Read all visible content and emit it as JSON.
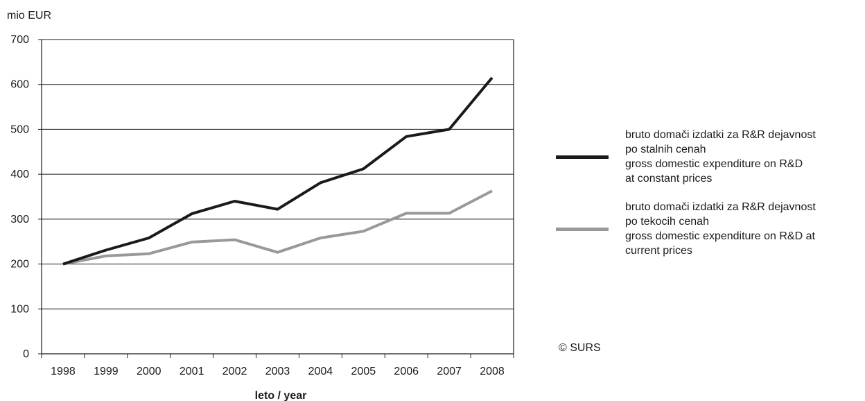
{
  "chart_data": {
    "type": "line",
    "ylabel": "mio EUR",
    "xlabel": "leto / year",
    "ylim": [
      0,
      700
    ],
    "yticks": [
      0,
      100,
      200,
      300,
      400,
      500,
      600,
      700
    ],
    "x": [
      "1998",
      "1999",
      "2000",
      "2001",
      "2002",
      "2003",
      "2004",
      "2005",
      "2006",
      "2007",
      "2008"
    ],
    "grid": true,
    "legend_position": "right",
    "series": [
      {
        "name_lines": [
          "bruto domači izdatki za R&R dejavnost",
          "po stalnih cenah",
          "gross domestic expenditure on R&D",
          "at constant prices"
        ],
        "color": "#1a1a1a",
        "values": [
          200,
          231,
          258,
          312,
          340,
          322,
          381,
          412,
          484,
          500,
          615
        ]
      },
      {
        "name_lines": [
          "bruto domači izdatki za R&R dejavnost",
          "po tekocih cenah",
          "gross domestic expenditure on R&D at",
          "current prices"
        ],
        "color": "#999999",
        "values": [
          200,
          218,
          223,
          249,
          254,
          226,
          258,
          273,
          313,
          313,
          363
        ]
      }
    ]
  },
  "copyright": "© SURS"
}
